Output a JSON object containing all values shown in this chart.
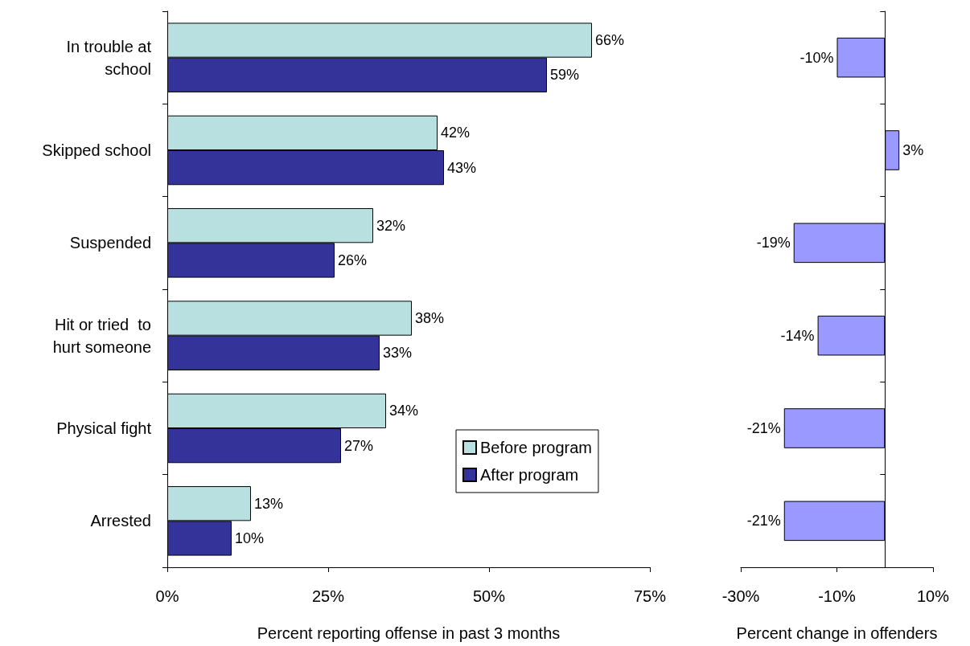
{
  "chart_data": [
    {
      "type": "bar",
      "orientation": "horizontal",
      "xlabel": "Percent reporting offense in past 3 months",
      "categories": [
        "In trouble at\nschool",
        "Skipped school",
        "Suspended",
        "Hit or tried  to\nhurt someone",
        "Physical fight",
        "Arrested"
      ],
      "series": [
        {
          "name": "Before program",
          "color": "#b8e0e0",
          "values": [
            66,
            42,
            32,
            38,
            34,
            13
          ],
          "value_labels": [
            "66%",
            "42%",
            "32%",
            "38%",
            "34%",
            "13%"
          ]
        },
        {
          "name": "After program",
          "color": "#333399",
          "values": [
            59,
            43,
            26,
            33,
            27,
            10
          ],
          "value_labels": [
            "59%",
            "43%",
            "26%",
            "33%",
            "27%",
            "10%"
          ]
        }
      ],
      "xlim": [
        0,
        75
      ],
      "xticks": [
        {
          "value": 0,
          "label": "0%"
        },
        {
          "value": 25,
          "label": "25%"
        },
        {
          "value": 50,
          "label": "50%"
        },
        {
          "value": 75,
          "label": "75%"
        }
      ],
      "grid": false,
      "legend": "bottom right"
    },
    {
      "type": "bar",
      "orientation": "horizontal",
      "xlabel": "Percent change in offenders",
      "categories": [
        null,
        null,
        null,
        null,
        null,
        null
      ],
      "series": [
        {
          "color": "#9999ff",
          "values": [
            -10,
            3,
            -19,
            -14,
            -21,
            -21
          ],
          "value_labels": [
            "-10%",
            "3%",
            "-19%",
            "-14%",
            "-21%",
            "-21%"
          ]
        }
      ],
      "xlim": [
        -30,
        10
      ],
      "xticks": [
        {
          "value": -30,
          "label": "-30%"
        },
        {
          "value": -10,
          "label": "-10%"
        },
        {
          "value": 10,
          "label": "10%"
        }
      ],
      "grid": false,
      "tick_labels": "x"
    }
  ]
}
